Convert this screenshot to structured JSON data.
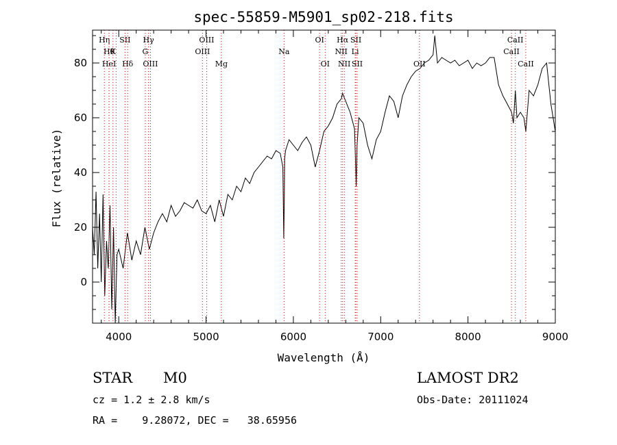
{
  "chart_data": {
    "type": "line",
    "title": "spec-55859-M5901_sp02-218.fits",
    "xlabel": "Wavelength (Å)",
    "ylabel": "Flux (relative)",
    "xlim": [
      3700,
      9000
    ],
    "ylim": [
      -15,
      92
    ],
    "xticks": [
      4000,
      5000,
      6000,
      7000,
      8000,
      9000
    ],
    "yticks": [
      0,
      20,
      40,
      60,
      80
    ],
    "grid": false,
    "series": [
      {
        "x": [
          3700,
          3720,
          3740,
          3760,
          3780,
          3800,
          3820,
          3840,
          3860,
          3880,
          3900,
          3920,
          3940,
          3960,
          3980,
          4000,
          4050,
          4100,
          4150,
          4200,
          4250,
          4300,
          4350,
          4400,
          4450,
          4500,
          4550,
          4600,
          4650,
          4700,
          4750,
          4800,
          4850,
          4900,
          4950,
          5000,
          5050,
          5100,
          5150,
          5200,
          5250,
          5300,
          5350,
          5400,
          5450,
          5500,
          5550,
          5600,
          5650,
          5700,
          5750,
          5800,
          5850,
          5880,
          5890,
          5896,
          5900,
          5910,
          5950,
          6000,
          6050,
          6100,
          6150,
          6200,
          6250,
          6300,
          6350,
          6400,
          6450,
          6500,
          6550,
          6563,
          6600,
          6650,
          6700,
          6716,
          6720,
          6730,
          6750,
          6800,
          6850,
          6900,
          6950,
          7000,
          7050,
          7100,
          7150,
          7200,
          7250,
          7300,
          7350,
          7400,
          7450,
          7500,
          7550,
          7600,
          7620,
          7650,
          7700,
          7750,
          7800,
          7850,
          7900,
          7950,
          8000,
          8050,
          8100,
          8150,
          8200,
          8250,
          8300,
          8350,
          8400,
          8450,
          8500,
          8520,
          8542,
          8560,
          8600,
          8640,
          8662,
          8700,
          8750,
          8800,
          8850,
          8900,
          8950,
          9000
        ],
        "y": [
          20,
          10,
          33,
          5,
          25,
          0,
          32,
          -5,
          15,
          5,
          28,
          -10,
          20,
          -15,
          10,
          12,
          5,
          18,
          8,
          15,
          10,
          20,
          12,
          18,
          22,
          25,
          22,
          28,
          24,
          26,
          29,
          28,
          27,
          30,
          26,
          25,
          28,
          22,
          30,
          24,
          32,
          30,
          35,
          33,
          38,
          36,
          40,
          42,
          44,
          46,
          45,
          48,
          47,
          42,
          16,
          30,
          45,
          48,
          52,
          50,
          48,
          51,
          53,
          50,
          42,
          48,
          55,
          57,
          60,
          65,
          67,
          69,
          66,
          62,
          56,
          40,
          35,
          50,
          60,
          58,
          50,
          45,
          52,
          55,
          62,
          68,
          66,
          60,
          68,
          72,
          75,
          77,
          78,
          80,
          81,
          83,
          90,
          80,
          82,
          81,
          80,
          81,
          79,
          80,
          81,
          78,
          80,
          79,
          80,
          82,
          82,
          72,
          68,
          65,
          62,
          58,
          70,
          60,
          62,
          60,
          55,
          70,
          68,
          72,
          78,
          80,
          65,
          55
        ]
      }
    ],
    "line_markers": [
      {
        "x": 3835,
        "label": "Hη",
        "row": 0
      },
      {
        "x": 3889,
        "label": "Hθ",
        "row": 1
      },
      {
        "x": 3889,
        "label": "HeI",
        "row": 2
      },
      {
        "x": 3934,
        "label": "K",
        "row": 1
      },
      {
        "x": 3970,
        "label": "",
        "row": 0
      },
      {
        "x": 4072,
        "label": "SII",
        "row": 0
      },
      {
        "x": 4102,
        "label": "Hδ",
        "row": 2
      },
      {
        "x": 4304,
        "label": "G",
        "row": 1
      },
      {
        "x": 4341,
        "label": "Hγ",
        "row": 0
      },
      {
        "x": 4363,
        "label": "OIII",
        "row": 2
      },
      {
        "x": 4959,
        "label": "OIII",
        "row": 1
      },
      {
        "x": 5007,
        "label": "OIII",
        "row": 0
      },
      {
        "x": 5175,
        "label": "Mg",
        "row": 2
      },
      {
        "x": 5893,
        "label": "Na",
        "row": 1
      },
      {
        "x": 6300,
        "label": "OI",
        "row": 0
      },
      {
        "x": 6364,
        "label": "OI",
        "row": 2
      },
      {
        "x": 6548,
        "label": "NII",
        "row": 1
      },
      {
        "x": 6563,
        "label": "Hα",
        "row": 0
      },
      {
        "x": 6583,
        "label": "NII",
        "row": 2
      },
      {
        "x": 6708,
        "label": "Li",
        "row": 1
      },
      {
        "x": 6716,
        "label": "SII",
        "row": 0
      },
      {
        "x": 6731,
        "label": "SII",
        "row": 2
      },
      {
        "x": 7444,
        "label": "OII",
        "row": 2
      },
      {
        "x": 8498,
        "label": "CaII",
        "row": 1
      },
      {
        "x": 8542,
        "label": "CaII",
        "row": 0
      },
      {
        "x": 8662,
        "label": "CaII",
        "row": 2
      }
    ]
  },
  "info": {
    "object_class": "STAR",
    "subclass": "M0",
    "survey": "LAMOST DR2",
    "redshift": "cz = 1.2 ± 2.8 km/s",
    "obs_date": "Obs-Date: 20111024",
    "coords": "RA =    9.28072, DEC =   38.65956"
  }
}
